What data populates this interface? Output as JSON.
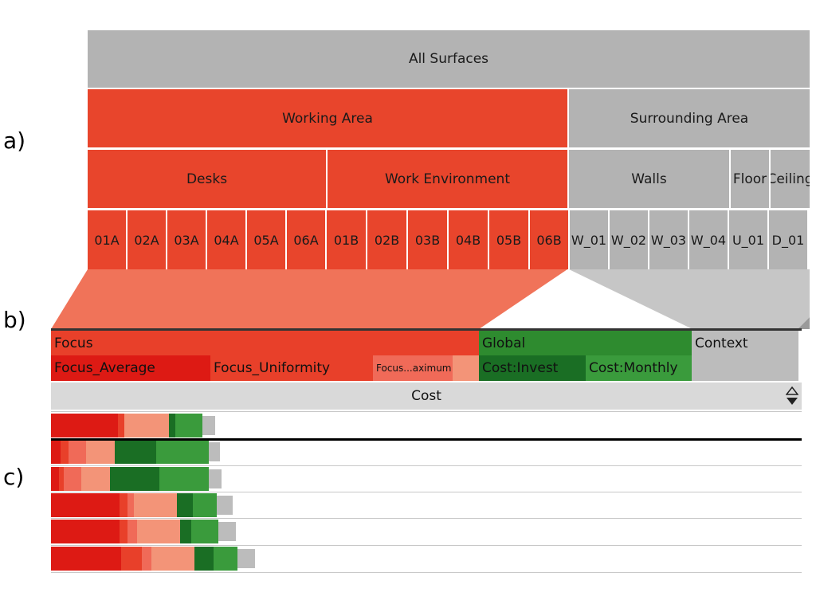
{
  "labels": {
    "a": "a)",
    "b": "b)",
    "c": "c)"
  },
  "hierarchy": {
    "root": "All Surfaces",
    "level1": [
      "Working Area",
      "Surrounding Area"
    ],
    "level2": [
      "Desks",
      "Work Environment",
      "Walls",
      "Floor",
      "Ceiling"
    ],
    "leaves": [
      "01A",
      "02A",
      "03A",
      "04A",
      "05A",
      "06A",
      "01B",
      "02B",
      "03B",
      "04B",
      "05B",
      "06B",
      "W_01",
      "W_02",
      "W_03",
      "W_04",
      "U_01",
      "D_01"
    ]
  },
  "colors": {
    "focus_red": "#e8452c",
    "surrounding_gray": "#b3b3b3",
    "focus_avg": "#dd1a14",
    "focus_uni": "#e8402a",
    "focus_max": "#f06a58",
    "focus_other": "#f39478",
    "invest_green": "#1a6e24",
    "monthly_green": "#3a9b3c",
    "context_gray": "#bcbcbc"
  },
  "attributes": {
    "groups": [
      "Focus",
      "Global",
      "Context"
    ],
    "columns": [
      "Focus_Average",
      "Focus_Uniformity",
      "Focus...aximum",
      "Cost:Invest",
      "Cost:Monthly"
    ],
    "sort_column": "Cost",
    "sort_icon": "sort-up-down-icon"
  },
  "chart_data": {
    "type": "stacked-bar",
    "segments": [
      "Focus_Average",
      "Focus_Uniformity",
      "Focus_Maximum",
      "Focus_Other",
      "Cost:Invest",
      "Cost:Monthly",
      "Context"
    ],
    "rows": [
      [
        84,
        8,
        0,
        56,
        8,
        34,
        16
      ],
      [
        12,
        10,
        22,
        36,
        52,
        66,
        14
      ],
      [
        10,
        6,
        22,
        36,
        62,
        62,
        16
      ],
      [
        86,
        10,
        8,
        54,
        20,
        30,
        20
      ],
      [
        86,
        10,
        12,
        54,
        14,
        34,
        22
      ],
      [
        88,
        26,
        12,
        54,
        24,
        30,
        22
      ]
    ]
  }
}
